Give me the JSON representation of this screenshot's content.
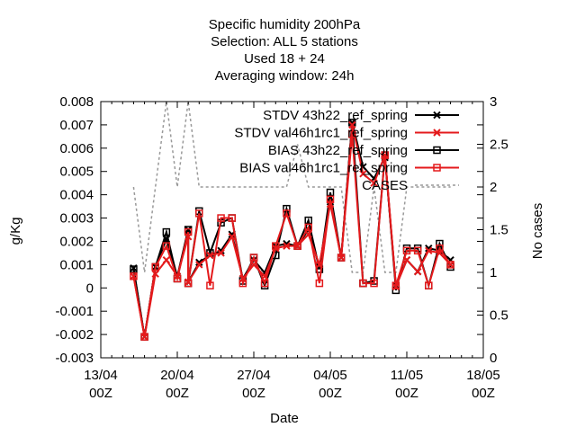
{
  "chart_data": {
    "type": "line",
    "title_lines": [
      "Specific humidity 200hPa",
      "Selection: ALL       5 stations",
      "Used  18  + 24",
      "Averaging window: 24h"
    ],
    "xlabel": "Date",
    "ylabel": "g/Kg",
    "y2label": "No cases",
    "x_range": [
      "2015-04-13",
      "2015-05-18"
    ],
    "ylim": [
      -0.003,
      0.008
    ],
    "y2lim": [
      0,
      3
    ],
    "grid": false,
    "legend_position": "top-right",
    "x_ticks": [
      {
        "date": "2015-04-13",
        "line1": "13/04",
        "line2": "00Z"
      },
      {
        "date": "2015-04-20",
        "line1": "20/04",
        "line2": "00Z"
      },
      {
        "date": "2015-04-27",
        "line1": "27/04",
        "line2": "00Z"
      },
      {
        "date": "2015-05-04",
        "line1": "04/05",
        "line2": "00Z"
      },
      {
        "date": "2015-05-11",
        "line1": "11/05",
        "line2": "00Z"
      },
      {
        "date": "2015-05-18",
        "line1": "18/05",
        "line2": "00Z"
      }
    ],
    "y_ticks": [
      "-0.003",
      "-0.002",
      "-0.001",
      "0",
      "0.001",
      "0.002",
      "0.003",
      "0.004",
      "0.005",
      "0.006",
      "0.007",
      "0.008"
    ],
    "y2_ticks": [
      "0",
      "0.5",
      "1",
      "1.5",
      "2",
      "2.5",
      "3"
    ],
    "x": [
      "2015-04-16",
      "2015-04-17",
      "2015-04-18",
      "2015-04-19",
      "2015-04-20",
      "2015-04-21",
      "2015-04-21",
      "2015-04-22",
      "2015-04-23",
      "2015-04-24",
      "2015-04-25",
      "2015-04-26",
      "2015-04-27",
      "2015-04-28",
      "2015-04-29",
      "2015-04-30",
      "2015-05-01",
      "2015-05-02",
      "2015-05-03",
      "2015-05-04",
      "2015-05-05",
      "2015-05-06",
      "2015-05-07",
      "2015-05-08",
      "2015-05-09",
      "2015-05-10",
      "2015-05-11",
      "2015-05-12",
      "2015-05-13",
      "2015-05-14",
      "2015-05-15"
    ],
    "series": [
      {
        "name": "STDV 43h22_ref_spring",
        "axis": "y",
        "color": "#000000",
        "marker": "x",
        "dash": "",
        "values": [
          0.00085,
          -0.0021,
          0.0009,
          0.0021,
          0.0005,
          0.0025,
          0.00025,
          0.0011,
          0.0014,
          0.0016,
          0.0023,
          0.0004,
          0.0012,
          0.00065,
          0.0018,
          0.0019,
          0.0018,
          0.0025,
          0.0009,
          0.0037,
          0.0013,
          0.0071,
          0.0052,
          0.0047,
          0.0056,
          0.0001,
          0.0012,
          0.0007,
          0.0017,
          0.0016,
          0.0012
        ]
      },
      {
        "name": "STDV val46h1rc1_ref_spring",
        "axis": "y",
        "color": "#e41a1c",
        "marker": "x",
        "dash": "",
        "values": [
          0.0005,
          -0.0021,
          0.0006,
          0.0012,
          0.0005,
          0.0022,
          0.00025,
          0.001,
          0.0014,
          0.0015,
          0.0022,
          0.0004,
          0.001,
          0.0005,
          0.0017,
          0.0018,
          0.0018,
          0.0023,
          0.001,
          0.0036,
          0.0013,
          0.007,
          0.0049,
          0.0045,
          0.0057,
          5e-05,
          0.0012,
          0.0007,
          0.0016,
          0.0015,
          0.001
        ]
      },
      {
        "name": "BIAS 43h22_ref_spring",
        "axis": "y",
        "color": "#000000",
        "marker": "square",
        "dash": "",
        "values": [
          0.0008,
          -0.0021,
          0.0009,
          0.0024,
          0.0004,
          0.0025,
          0.0002,
          0.0033,
          0.0015,
          0.0028,
          0.003,
          0.0003,
          0.0013,
          0.0001,
          0.0014,
          0.0034,
          0.0018,
          0.0029,
          0.0008,
          0.0041,
          0.0013,
          0.0071,
          0.0002,
          0.0003,
          0.0057,
          -0.0001,
          0.0017,
          0.0017,
          0.0001,
          0.0019,
          0.0009
        ]
      },
      {
        "name": "BIAS val46h1rc1_ref_spring",
        "axis": "y",
        "color": "#e41a1c",
        "marker": "square",
        "dash": "",
        "values": [
          0.0005,
          -0.0021,
          0.0009,
          0.0018,
          0.0004,
          0.0024,
          0.0002,
          0.0032,
          0.0001,
          0.003,
          0.003,
          0.0002,
          0.0013,
          0.0002,
          0.0018,
          0.0032,
          0.0018,
          0.0026,
          0.0002,
          0.0038,
          0.0013,
          0.0066,
          0.0002,
          0.0002,
          0.0057,
          0.0001,
          0.0016,
          0.0016,
          0.0001,
          0.0017,
          0.001
        ]
      },
      {
        "name": "CASES",
        "axis": "y2",
        "color": "#999999",
        "marker": "none",
        "dash": "3,3",
        "values": [
          2,
          1,
          2,
          3,
          2,
          3,
          3,
          2,
          2,
          2,
          2,
          2,
          2,
          2,
          2,
          2,
          2.5,
          2,
          2,
          2,
          2,
          1,
          1,
          2,
          1,
          1,
          2,
          2,
          2,
          2,
          2
        ]
      }
    ]
  }
}
